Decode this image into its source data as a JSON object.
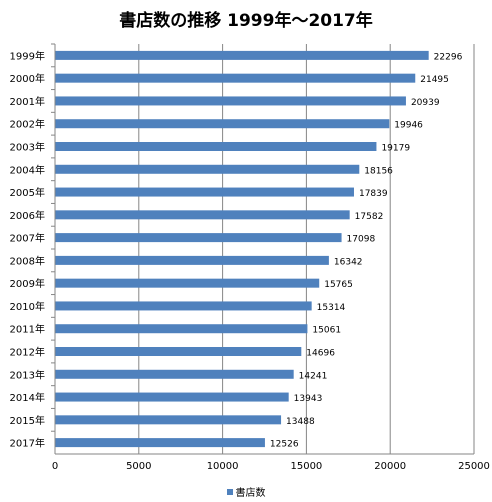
{
  "chart_data": {
    "type": "bar",
    "orientation": "horizontal",
    "title": "書店数の推移 1999年～2017年",
    "categories": [
      "1999年",
      "2000年",
      "2001年",
      "2002年",
      "2003年",
      "2004年",
      "2005年",
      "2006年",
      "2007年",
      "2008年",
      "2009年",
      "2010年",
      "2011年",
      "2012年",
      "2013年",
      "2014年",
      "2015年",
      "2017年"
    ],
    "series": [
      {
        "name": "書店数",
        "color": "#4f81bd",
        "values": [
          22296,
          21495,
          20939,
          19946,
          19179,
          18156,
          17839,
          17582,
          17098,
          16342,
          15765,
          15314,
          15061,
          14696,
          14241,
          13943,
          13488,
          12526
        ]
      }
    ],
    "xlim": [
      0,
      25000
    ],
    "xticks": [
      "0",
      "5000",
      "10000",
      "15000",
      "20000",
      "25000"
    ],
    "grid": "vertical",
    "legend": "bottom",
    "data_labels": true
  }
}
